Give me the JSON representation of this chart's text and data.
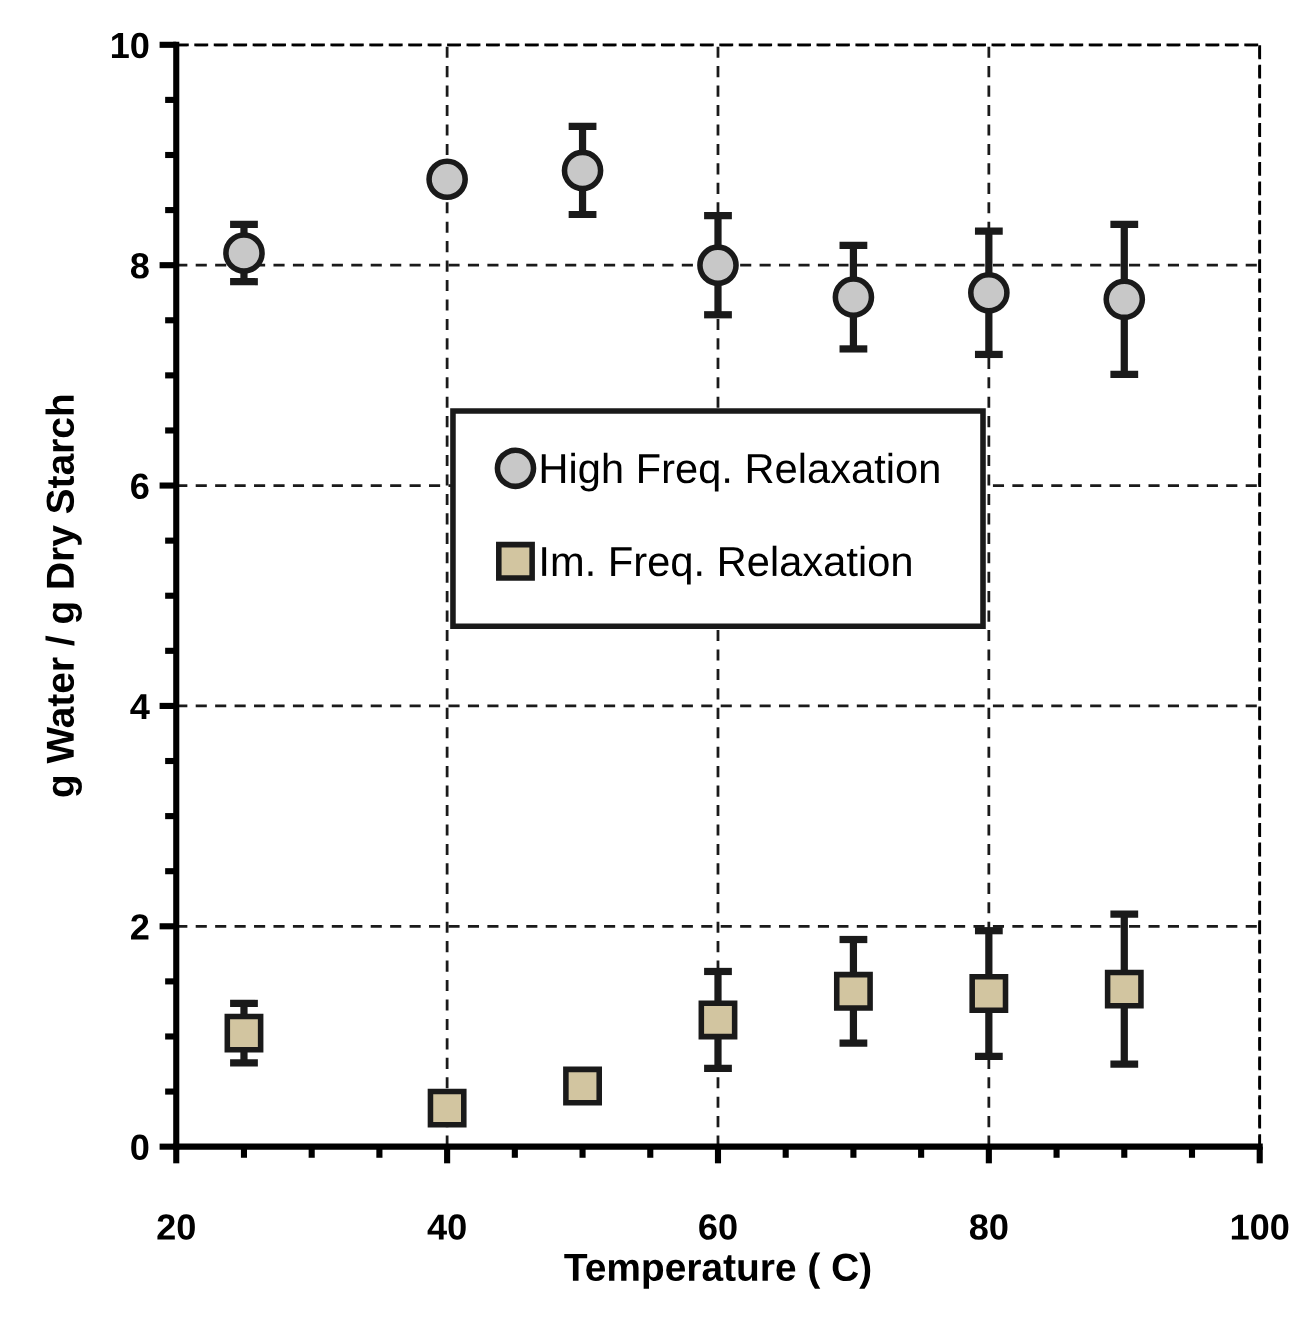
{
  "chart_data": {
    "type": "scatter",
    "xlabel": "Temperature ( C)",
    "ylabel": "g Water / g Dry Starch",
    "xlim": [
      20,
      100
    ],
    "xticks": [
      20,
      40,
      60,
      80,
      100
    ],
    "ylim": [
      0,
      10
    ],
    "yticks": [
      0,
      2,
      4,
      6,
      8,
      10
    ],
    "grid": true,
    "legend": "center",
    "series": [
      {
        "name": "High Freq. Relaxation",
        "color": "#c8c8c8",
        "marker": "circle",
        "x": [
          25,
          40,
          50,
          60,
          70,
          80,
          90
        ],
        "values": [
          8.11,
          8.78,
          8.86,
          8.0,
          7.71,
          7.75,
          7.69
        ],
        "errors": [
          0.26,
          null,
          0.4,
          0.45,
          0.47,
          0.56,
          0.68
        ]
      },
      {
        "name": "Im. Freq. Relaxation",
        "color": "#d2c5a0",
        "marker": "square",
        "x": [
          25,
          40,
          50,
          60,
          70,
          80,
          90
        ],
        "values": [
          1.03,
          0.35,
          0.55,
          1.15,
          1.41,
          1.39,
          1.43
        ],
        "errors": [
          0.27,
          null,
          null,
          0.44,
          0.47,
          0.57,
          0.68
        ]
      }
    ]
  }
}
